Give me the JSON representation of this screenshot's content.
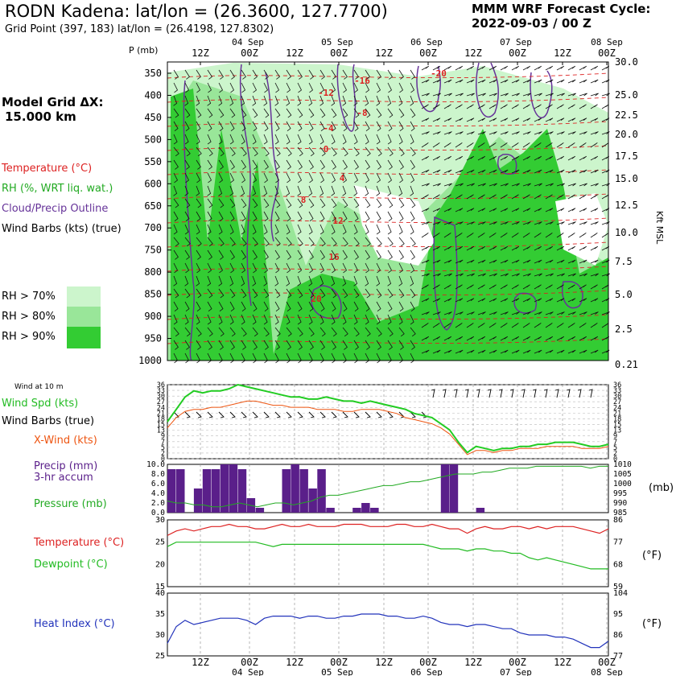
{
  "header": {
    "title": "RODN Kadena:  lat/lon = (26.3600, 127.7700)",
    "subtitle": "Grid Point (397, 183) lat/lon = (26.4198, 127.8302)",
    "cycle_line1": "MMM WRF Forecast Cycle:",
    "cycle_line2": "2022-09-03 / 00  Z",
    "model_grid_line1": "Model Grid ΔX:",
    "model_grid_line2": "15.000 km"
  },
  "legend": {
    "temperature": "Temperature (°C)",
    "rh": "RH (%, WRT liq. wat.)",
    "cloud": "Cloud/Precip Outline",
    "wind_barbs": "Wind Barbs (kts) (true)",
    "rh70": "RH > 70%",
    "rh80": "RH > 80%",
    "rh90": "RH > 90%"
  },
  "colors": {
    "rh70": "#ccf5cc",
    "rh80": "#99e699",
    "rh90": "#33cc33",
    "temperature": "#dd2222",
    "cloud": "#663399",
    "wind_speed": "#22cc22",
    "x_wind": "#ee5511",
    "precip": "#5a1f8a",
    "pressure": "#22aa22",
    "dewpoint": "#22bb22",
    "heat_index": "#2233bb"
  },
  "time_axis": {
    "top_dates": [
      "04 Sep",
      "05 Sep",
      "06 Sep",
      "07 Sep",
      "08 Sep"
    ],
    "bottom_dates": [
      "04 Sep",
      "05 Sep",
      "06 Sep",
      "07 Sep",
      "08 Sep"
    ],
    "hour_labels": [
      "12Z",
      "00Z",
      "12Z",
      "00Z",
      "12Z",
      "00Z",
      "12Z",
      "00Z",
      "12Z",
      "00Z"
    ]
  },
  "chart_data": [
    {
      "type": "heatmap",
      "name": "cross-section",
      "p_label": "P (mb)",
      "kft_label": "Kft MSL",
      "pressure_ticks": [
        "350",
        "400",
        "450",
        "500",
        "550",
        "600",
        "650",
        "700",
        "750",
        "800",
        "850",
        "900",
        "950",
        "1000"
      ],
      "kft_ticks": [
        "30.0",
        "25.0",
        "22.5",
        "20.0",
        "17.5",
        "15.0",
        "12.5",
        "10.0",
        "7.5",
        "5.0",
        "2.5",
        "0.21"
      ],
      "temp_labels": [
        "-20",
        "-16",
        "-12",
        "-8",
        "-4",
        "0",
        "4",
        "8",
        "12",
        "16",
        "20"
      ]
    },
    {
      "type": "line",
      "name": "wind",
      "title": "Wind at 10 m",
      "series_labels": [
        "Wind Spd (kts)",
        "Wind Barbs (true)",
        "X-Wind (kts)"
      ],
      "ticks": [
        "36",
        "33",
        "30",
        "27",
        "24",
        "21",
        "18",
        "15",
        "13",
        "9",
        "7",
        "5",
        "2",
        "0"
      ],
      "wind_speed": [
        18,
        24,
        30,
        33,
        32,
        33,
        33,
        34,
        36,
        35,
        34,
        33,
        32,
        31,
        30,
        30,
        29,
        29,
        30,
        29,
        28,
        28,
        27,
        28,
        27,
        26,
        25,
        24,
        22,
        21,
        20,
        17,
        14,
        8,
        3,
        6,
        5,
        4,
        5,
        5,
        6,
        6,
        7,
        7,
        8,
        8,
        8,
        7,
        6,
        6,
        7
      ],
      "x_wind": [
        15,
        20,
        23,
        24,
        24,
        25,
        25,
        26,
        27,
        28,
        28,
        27,
        26,
        26,
        25,
        25,
        25,
        24,
        24,
        24,
        23,
        23,
        24,
        24,
        24,
        23,
        22,
        20,
        19,
        18,
        17,
        15,
        12,
        7,
        2,
        4,
        4,
        3,
        4,
        4,
        5,
        5,
        5,
        6,
        6,
        6,
        6,
        5,
        5,
        5,
        6
      ]
    },
    {
      "type": "bar",
      "name": "precip-pressure",
      "series_labels": [
        "Precip (mm)",
        "3-hr accum",
        "Pressure (mb)"
      ],
      "unit_right": "(mb)",
      "precip_ticks": [
        "10.0",
        "8.0",
        "6.0",
        "4.0",
        "2.0",
        "0.0"
      ],
      "pressure_ticks": [
        "1010",
        "1005",
        "1000",
        "995",
        "990",
        "985"
      ],
      "precip": [
        9,
        9,
        0,
        5,
        9,
        9,
        10,
        10,
        9,
        3,
        1,
        0,
        0,
        9,
        10,
        9,
        5,
        9,
        1,
        0,
        0,
        1,
        2,
        1,
        0,
        0,
        0,
        0,
        0,
        0,
        0,
        10,
        10,
        0,
        0,
        1,
        0,
        0,
        0,
        0,
        0,
        0,
        0,
        0,
        0,
        0,
        0,
        0,
        0,
        0
      ],
      "pressure": [
        991,
        990,
        990,
        989,
        989,
        988,
        988,
        989,
        990,
        989,
        988,
        989,
        990,
        990,
        989,
        990,
        991,
        993,
        994,
        994,
        995,
        996,
        997,
        998,
        999,
        999,
        1000,
        1001,
        1001,
        1002,
        1003,
        1004,
        1005,
        1005,
        1005,
        1006,
        1006,
        1007,
        1008,
        1008,
        1008,
        1009,
        1009,
        1009,
        1009,
        1009,
        1009,
        1008,
        1009,
        1009
      ]
    },
    {
      "type": "line",
      "name": "temperature-dewpoint",
      "series_labels": [
        "Temperature (°C)",
        "Dewpoint (°C)"
      ],
      "unit_right": "(°F)",
      "c_ticks": [
        "30",
        "25",
        "20",
        "15"
      ],
      "f_ticks": [
        "86",
        "77",
        "68",
        "59"
      ],
      "temperature": [
        26.5,
        27.5,
        28,
        27.5,
        28,
        28.5,
        28.5,
        29,
        28.5,
        28.5,
        28,
        28,
        28.5,
        29,
        28.5,
        28.5,
        29,
        28.5,
        28.5,
        28.5,
        29,
        29,
        29,
        28.5,
        28.5,
        28.5,
        29,
        29,
        28.5,
        28.5,
        29,
        28.5,
        28,
        28,
        27,
        28,
        28.5,
        28,
        28,
        28.5,
        28.5,
        28,
        28.5,
        28,
        28.5,
        28.5,
        28.5,
        28,
        27.5,
        27,
        28
      ],
      "dewpoint": [
        24,
        25,
        25,
        25,
        25,
        25,
        25,
        25,
        25,
        25,
        25,
        24.5,
        24,
        24.5,
        24.5,
        24.5,
        24.5,
        24.5,
        24.5,
        24.5,
        24.5,
        24.5,
        24.5,
        24.5,
        24.5,
        24.5,
        24.5,
        24.5,
        24.5,
        24.5,
        24,
        23.5,
        23.5,
        23.5,
        23,
        23.5,
        23.5,
        23,
        23,
        22.5,
        22.5,
        21.5,
        21,
        21.5,
        21,
        20.5,
        20,
        19.5,
        19,
        19,
        19
      ]
    },
    {
      "type": "line",
      "name": "heat-index",
      "series_labels": [
        "Heat Index (°C)"
      ],
      "unit_right": "(°F)",
      "c_ticks": [
        "40",
        "35",
        "30",
        "25"
      ],
      "f_ticks": [
        "104",
        "95",
        "86",
        "77"
      ],
      "heat_index": [
        28,
        32,
        33.5,
        32.5,
        33,
        33.5,
        34,
        34,
        34,
        33.5,
        32.5,
        34,
        34.5,
        34.5,
        34.5,
        34,
        34.5,
        34.5,
        34,
        34,
        34.5,
        34.5,
        35,
        35,
        35,
        34.5,
        34.5,
        34,
        34,
        34.5,
        34,
        33,
        32.5,
        32.5,
        32,
        32.5,
        32.5,
        32,
        31.5,
        31.5,
        30.5,
        30,
        30,
        30,
        29.5,
        29.5,
        29,
        28,
        27,
        27,
        28.5
      ]
    }
  ]
}
